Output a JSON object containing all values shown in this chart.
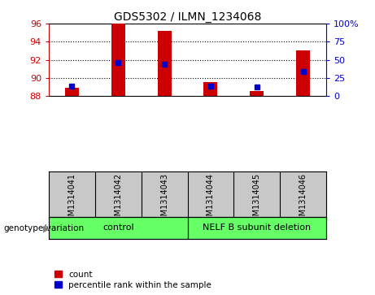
{
  "title": "GDS5302 / ILMN_1234068",
  "samples": [
    "GSM1314041",
    "GSM1314042",
    "GSM1314043",
    "GSM1314044",
    "GSM1314045",
    "GSM1314046"
  ],
  "count_values": [
    88.9,
    96.0,
    95.2,
    89.5,
    88.5,
    93.0
  ],
  "percentile_values": [
    13,
    46,
    44,
    14,
    12,
    34
  ],
  "y_min": 88,
  "y_max": 96,
  "y_ticks": [
    88,
    90,
    92,
    94,
    96
  ],
  "pct_min": 0,
  "pct_max": 100,
  "pct_ticks": [
    0,
    25,
    50,
    75,
    100
  ],
  "bar_color": "#cc0000",
  "square_color": "#0000cc",
  "gray_color": "#c8c8c8",
  "green_color": "#66ff66",
  "legend_count_label": "count",
  "legend_pct_label": "percentile rank within the sample",
  "bar_width": 0.3,
  "group1_label": "control",
  "group2_label": "NELF B subunit deletion",
  "genotype_label": "genotype/variation"
}
